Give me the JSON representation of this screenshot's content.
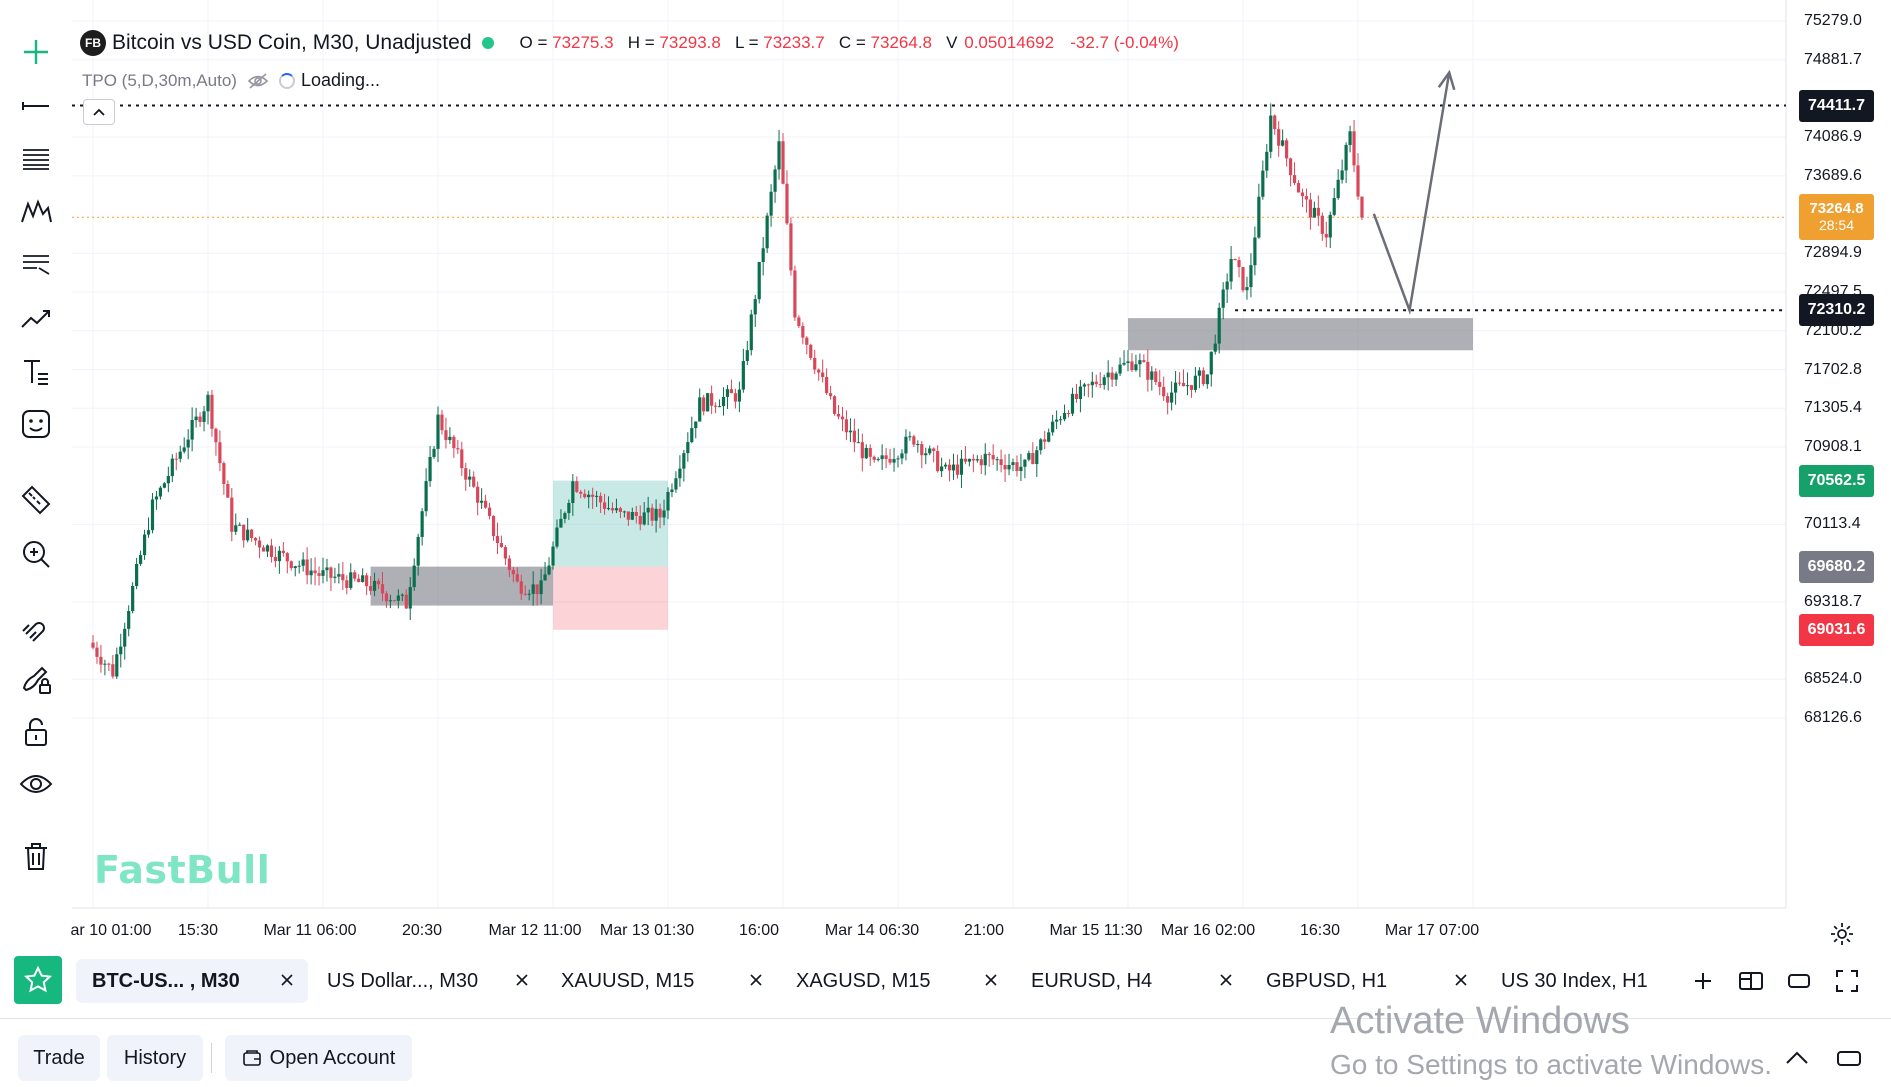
{
  "legend": {
    "badge": "FB",
    "symbol": "Bitcoin vs USD Coin, M30, Unadjusted",
    "o_label": "O =",
    "o_value": "73275.3",
    "h_label": "H =",
    "h_value": "73293.8",
    "l_label": "L =",
    "l_value": "73233.7",
    "c_label": "C =",
    "c_value": "73264.8",
    "v_label": "V",
    "v_value": "0.05014692",
    "change": "-32.7 (-0.04%)"
  },
  "indicator": {
    "name": "TPO (5,D,30m,Auto)",
    "status": "Loading..."
  },
  "watermark": "FastBull",
  "price_axis": {
    "labels": [
      "75279.0",
      "74881.7",
      "74086.9",
      "73689.6",
      "72894.9",
      "72497.5",
      "72100.2",
      "71702.8",
      "71305.4",
      "70908.1",
      "70113.4",
      "69318.7",
      "68524.0",
      "68126.6"
    ],
    "tags": {
      "high_line": "74411.7",
      "current_price": "73264.8",
      "countdown": "28:54",
      "support_line": "72310.2",
      "tag_green": "70562.5",
      "tag_gray": "69680.2",
      "tag_red": "69031.6"
    }
  },
  "time_axis": [
    "ar 10 01:00",
    "15:30",
    "Mar 11 06:00",
    "20:30",
    "Mar 12 11:00",
    "Mar 13 01:30",
    "16:00",
    "Mar 14 06:30",
    "21:00",
    "Mar 15 11:30",
    "Mar 16 02:00",
    "16:30",
    "Mar 17 07:00"
  ],
  "chart_data": {
    "type": "candlestick",
    "symbol": "Bitcoin vs USD Coin",
    "timeframe": "M30",
    "ylim": [
      68000,
      75350
    ],
    "last": {
      "open": 73275.3,
      "high": 73293.8,
      "low": 73233.7,
      "close": 73264.8
    },
    "pivots": [
      {
        "x": "Mar 10 01:00",
        "price": 68900
      },
      {
        "x": "Mar 10 04:00",
        "price": 68600
      },
      {
        "x": "Mar 10 09:00",
        "price": 70300
      },
      {
        "x": "Mar 10 13:00",
        "price": 70950
      },
      {
        "x": "Mar 10 16:00",
        "price": 71400
      },
      {
        "x": "Mar 10 19:00",
        "price": 70100
      },
      {
        "x": "Mar 11 01:00",
        "price": 69800
      },
      {
        "x": "Mar 11 06:00",
        "price": 69600
      },
      {
        "x": "Mar 11 12:00",
        "price": 69500
      },
      {
        "x": "Mar 11 17:00",
        "price": 69300
      },
      {
        "x": "Mar 11 21:00",
        "price": 71200
      },
      {
        "x": "Mar 12 02:00",
        "price": 70400
      },
      {
        "x": "Mar 12 07:00",
        "price": 69500
      },
      {
        "x": "Mar 12 10:00",
        "price": 69450
      },
      {
        "x": "Mar 12 14:00",
        "price": 70550
      },
      {
        "x": "Mar 12 20:00",
        "price": 70200
      },
      {
        "x": "Mar 13 01:00",
        "price": 70200
      },
      {
        "x": "Mar 13 06:00",
        "price": 71350
      },
      {
        "x": "Mar 13 11:00",
        "price": 71450
      },
      {
        "x": "Mar 13 16:00",
        "price": 74000
      },
      {
        "x": "Mar 13 18:00",
        "price": 72300
      },
      {
        "x": "Mar 13 23:00",
        "price": 71250
      },
      {
        "x": "Mar 14 04:00",
        "price": 70700
      },
      {
        "x": "Mar 14 09:00",
        "price": 71000
      },
      {
        "x": "Mar 14 13:00",
        "price": 70650
      },
      {
        "x": "Mar 14 18:00",
        "price": 70800
      },
      {
        "x": "Mar 14 23:00",
        "price": 70700
      },
      {
        "x": "Mar 15 04:00",
        "price": 71300
      },
      {
        "x": "Mar 15 09:00",
        "price": 71650
      },
      {
        "x": "Mar 15 13:00",
        "price": 71800
      },
      {
        "x": "Mar 15 17:00",
        "price": 71450
      },
      {
        "x": "Mar 15 22:00",
        "price": 71650
      },
      {
        "x": "Mar 16 01:00",
        "price": 72850
      },
      {
        "x": "Mar 16 03:00",
        "price": 72500
      },
      {
        "x": "Mar 16 06:00",
        "price": 74300
      },
      {
        "x": "Mar 16 10:00",
        "price": 73450
      },
      {
        "x": "Mar 16 13:00",
        "price": 73100
      },
      {
        "x": "Mar 16 16:00",
        "price": 74100
      },
      {
        "x": "Mar 16 17:30",
        "price": 73264.8
      }
    ],
    "horizontal_lines": [
      {
        "price": 74411.7,
        "style": "dotted"
      },
      {
        "price": 72310.2,
        "style": "dotted"
      },
      {
        "price": 73264.8,
        "style": "dotted-orange"
      }
    ],
    "zones": [
      {
        "kind": "gray-demand",
        "from": "Mar 11 12:00",
        "to": "Mar 12 11:00",
        "low": 69280,
        "high": 69680
      },
      {
        "kind": "long-position-target",
        "from": "Mar 12 11:00",
        "to": "Mar 13 01:30",
        "low": 69680,
        "high": 70562.5
      },
      {
        "kind": "long-position-stop",
        "from": "Mar 12 11:00",
        "to": "Mar 13 01:30",
        "low": 69031.6,
        "high": 69680
      },
      {
        "kind": "gray-demand",
        "from": "Mar 15 11:30",
        "to": "Mar 17 07:00",
        "low": 71900,
        "high": 72230
      }
    ],
    "projection": [
      {
        "x": "Mar 16 18:30",
        "price": 73300
      },
      {
        "x": "Mar 16 23:00",
        "price": 72310.2
      },
      {
        "x": "Mar 17 04:00",
        "price": 74750
      }
    ]
  },
  "tabs": [
    {
      "label": "BTC-US...   , M30",
      "active": true
    },
    {
      "label": "US Dollar..., M30"
    },
    {
      "label": "XAUUSD, M15"
    },
    {
      "label": "XAGUSD, M15"
    },
    {
      "label": "EURUSD, H4"
    },
    {
      "label": "GBPUSD, H1"
    },
    {
      "label": "US 30 Index, H1"
    }
  ],
  "bottom": {
    "trade": "Trade",
    "history": "History",
    "open_account": "Open Account"
  },
  "activate": {
    "title": "Activate Windows",
    "subtitle": "Go to Settings to activate Windows."
  },
  "colors": {
    "up": "#0b6e4f",
    "down": "#d9475a",
    "accent": "#16b87f",
    "price_tag": "#f0a030",
    "dark_tag": "#131722",
    "red_tag": "#f23645"
  }
}
